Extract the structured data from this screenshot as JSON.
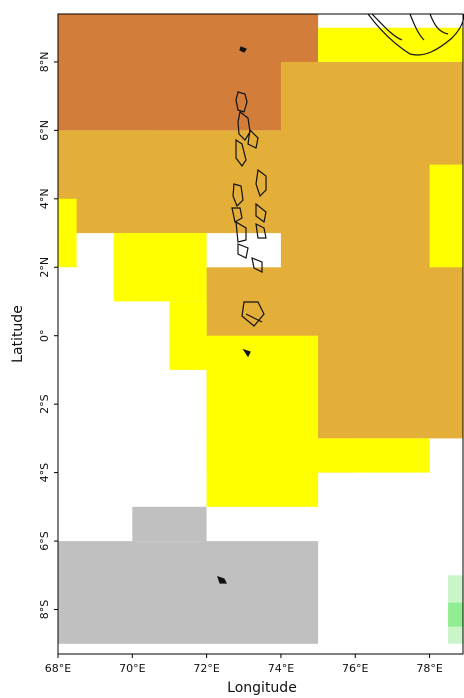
{
  "map": {
    "xlabel": "Longitude",
    "ylabel": "Latitude",
    "lon_ticks": [
      "68°E",
      "70°E",
      "72°E",
      "74°E",
      "76°E",
      "78°E"
    ],
    "lat_ticks": [
      "8°N",
      "6°N",
      "4°N",
      "2°N",
      "0°",
      "2°S",
      "4°S",
      "6°S",
      "8°S"
    ],
    "extent": {
      "lon_min": 68,
      "lon_max": 78.9,
      "lat_min": -9.3,
      "lat_max": 9.4
    },
    "cell_size_degrees": 1,
    "colors": {
      "brown": "#d27d3a",
      "gold": "#e4af39",
      "yellow": "#ffff00",
      "gray": "#c0c0c0",
      "green": "#90ee90",
      "lightgreen": "#c9f5c9",
      "white": "#ffffff"
    },
    "features": [
      "Maldives atolls outlines",
      "Sri Lanka / India coastline (top-right)"
    ]
  },
  "chart_data": {
    "type": "heatmap",
    "title": "",
    "xlabel": "Longitude",
    "ylabel": "Latitude",
    "xlim": [
      68,
      78.9
    ],
    "ylim": [
      -9.3,
      9.4
    ],
    "cell_size_degrees": 1,
    "value_legend": "colors only (no legend printed)",
    "regions": [
      {
        "color": "brown",
        "lon": [
          68,
          75
        ],
        "lat": [
          6,
          9.4
        ]
      },
      {
        "color": "brown",
        "lon": [
          70.5,
          73
        ],
        "lat": [
          5,
          6
        ]
      },
      {
        "color": "brown",
        "lon": [
          71.5,
          73
        ],
        "lat": [
          4,
          5
        ]
      },
      {
        "color": "brown",
        "lon": [
          75,
          77
        ],
        "lat": [
          4,
          5
        ]
      },
      {
        "color": "brown",
        "lon": [
          75,
          76
        ],
        "lat": [
          3,
          4
        ]
      },
      {
        "color": "brown",
        "lon": [
          77,
          78
        ],
        "lat": [
          3,
          4
        ]
      },
      {
        "color": "brown",
        "lon": [
          75,
          77
        ],
        "lat": [
          1,
          2
        ]
      },
      {
        "color": "brown",
        "lon": [
          78,
          79
        ],
        "lat": [
          5,
          6
        ]
      },
      {
        "color": "brown",
        "lon": [
          78,
          79
        ],
        "lat": [
          0,
          1
        ]
      },
      {
        "color": "gold",
        "lon": [
          68,
          75
        ],
        "lat": [
          3,
          6
        ]
      },
      {
        "color": "gold",
        "lon": [
          74,
          79
        ],
        "lat": [
          0,
          8
        ]
      },
      {
        "color": "gold",
        "lon": [
          72,
          79
        ],
        "lat": [
          -3,
          2
        ]
      },
      {
        "color": "gold",
        "lon": [
          75,
          76
        ],
        "lat": [
          -4,
          -3
        ]
      },
      {
        "color": "yellow",
        "lon": [
          68,
          68.5
        ],
        "lat": [
          2,
          4
        ]
      },
      {
        "color": "yellow",
        "lon": [
          69.5,
          72
        ],
        "lat": [
          1,
          3
        ]
      },
      {
        "color": "yellow",
        "lon": [
          71,
          72
        ],
        "lat": [
          -1,
          1
        ]
      },
      {
        "color": "yellow",
        "lon": [
          72,
          75
        ],
        "lat": [
          -5,
          0
        ]
      },
      {
        "color": "yellow",
        "lon": [
          72,
          78
        ],
        "lat": [
          -4,
          -3
        ]
      },
      {
        "color": "yellow",
        "lon": [
          78,
          79
        ],
        "lat": [
          2,
          5
        ]
      },
      {
        "color": "yellow",
        "lon": [
          75,
          79
        ],
        "lat": [
          8,
          9
        ]
      },
      {
        "color": "gray",
        "lon": [
          68,
          75
        ],
        "lat": [
          -9,
          -6
        ]
      },
      {
        "color": "gray",
        "lon": [
          70,
          72
        ],
        "lat": [
          -6,
          -5
        ]
      },
      {
        "color": "lightgreen",
        "lon": [
          78.5,
          79
        ],
        "lat": [
          -9,
          -7
        ]
      },
      {
        "color": "green",
        "lon": [
          78.5,
          79
        ],
        "lat": [
          -8.5,
          -7.8
        ]
      }
    ]
  }
}
